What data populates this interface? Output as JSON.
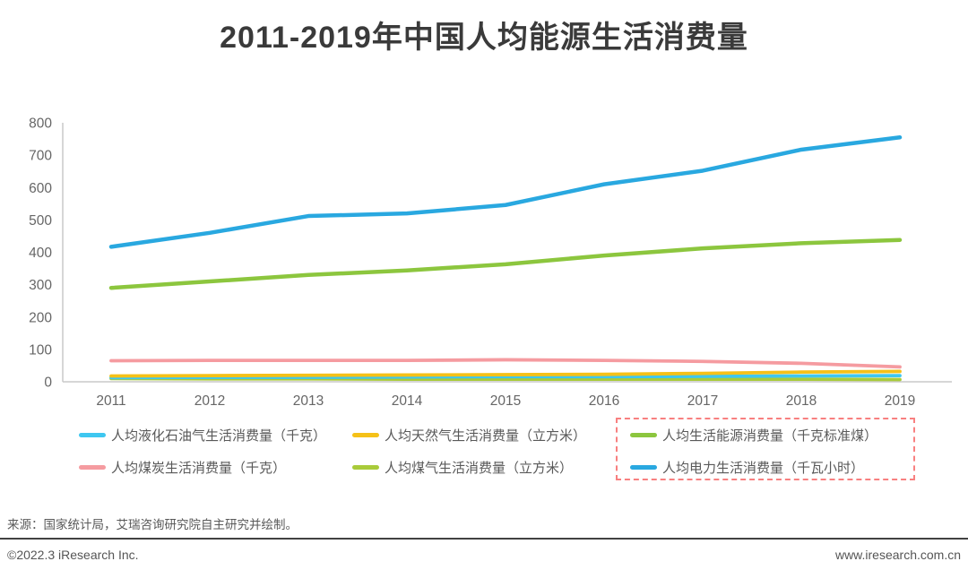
{
  "page": {
    "title": "2011-2019年中国人均能源生活消费量",
    "source_note": "来源：国家统计局，艾瑞咨询研究院自主研究并绘制。",
    "footer": {
      "left": "©2022.3 iResearch Inc.",
      "right": "www.iresearch.com.cn"
    }
  },
  "colors": {
    "title_text": "#3a3a3a",
    "legend_text": "#595959",
    "axis_line": "#c9c9c9",
    "tick_text": "#666666",
    "highlight_box_border": "#f88080"
  },
  "chart_data": {
    "type": "line",
    "title": "2011-2019年中国人均能源生活消费量",
    "x": [
      2011,
      2012,
      2013,
      2014,
      2015,
      2016,
      2017,
      2018,
      2019
    ],
    "xlabel": "",
    "ylabel": "",
    "ylim": [
      0,
      800
    ],
    "yticks": [
      0,
      100,
      200,
      300,
      400,
      500,
      600,
      700,
      800
    ],
    "grid": false,
    "legend_position": "bottom",
    "series": [
      {
        "name": "人均液化石油气生活消费量（千克）",
        "color": "#3ec7f0",
        "boxed": false,
        "values": [
          13,
          14,
          14,
          15,
          16,
          16,
          17,
          18,
          19
        ]
      },
      {
        "name": "人均天然气生活消费量（立方米）",
        "color": "#f5c118",
        "boxed": false,
        "values": [
          18,
          19,
          20,
          21,
          22,
          23,
          26,
          30,
          32
        ]
      },
      {
        "name": "人均生活能源消费量（千克标准煤）",
        "color": "#8cc63e",
        "boxed": true,
        "values": [
          290,
          310,
          330,
          344,
          363,
          390,
          412,
          428,
          438
        ]
      },
      {
        "name": "人均煤炭生活消费量（千克）",
        "color": "#f59ba0",
        "boxed": false,
        "values": [
          65,
          66,
          66,
          66,
          68,
          66,
          63,
          57,
          46
        ]
      },
      {
        "name": "人均煤气生活消费量（立方米）",
        "color": "#a9cb3a",
        "boxed": false,
        "values": [
          10,
          9,
          9,
          8,
          8,
          8,
          8,
          8,
          7
        ]
      },
      {
        "name": "人均电力生活消费量（千瓦小时）",
        "color": "#29a8e0",
        "boxed": true,
        "values": [
          417,
          460,
          512,
          520,
          546,
          610,
          652,
          717,
          755
        ]
      }
    ]
  }
}
